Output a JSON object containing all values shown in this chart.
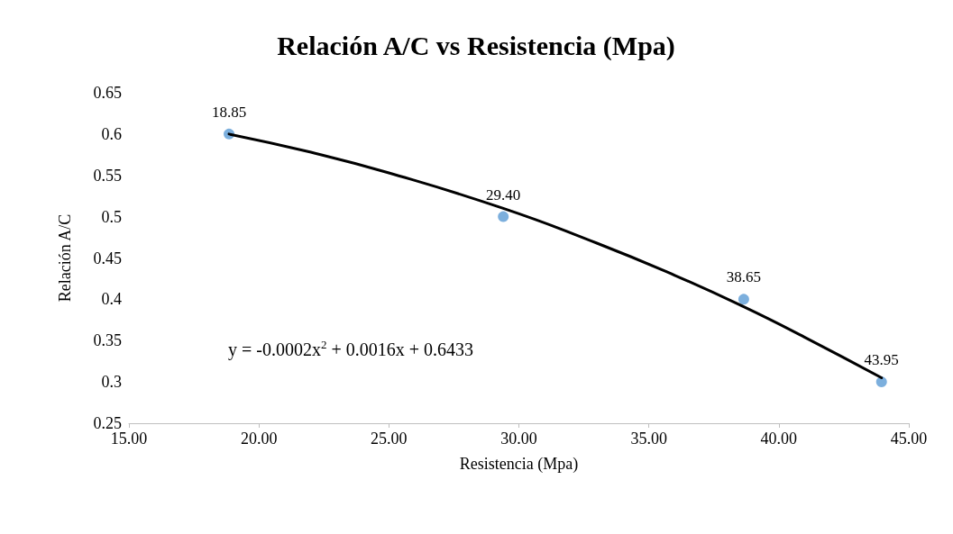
{
  "chart_data": {
    "type": "scatter",
    "title": "Relación A/C vs Resistencia (Mpa)",
    "xlabel": "Resistencia (Mpa)",
    "ylabel": "Relación A/C",
    "annotations": [
      "y = -0.0002x$^{2}$ + 0.0016x + 0.6433",
      {
        "text": "18.85",
        "x": 18.85,
        "y": 0.6
      },
      {
        "text": "29.40",
        "x": 29.4,
        "y": 0.5
      },
      {
        "text": "38.65",
        "x": 38.65,
        "y": 0.4
      },
      {
        "text": "43.95",
        "x": 43.95,
        "y": 0.3
      }
    ],
    "series": [
      {
        "type": "scatter",
        "color": "#5b9bd5",
        "x": [
          18.85,
          29.4,
          38.65,
          43.95
        ],
        "values": [
          0.6,
          0.5,
          0.4,
          0.3
        ],
        "marker": "circle"
      },
      {
        "type": "line",
        "color": "#000000",
        "x": [
          18.85,
          22,
          25,
          29.4,
          33,
          36,
          38.65,
          41,
          43.95
        ],
        "values": [
          0.6,
          0.578,
          0.553,
          0.51,
          0.468,
          0.429,
          0.391,
          0.354,
          0.305
        ],
        "marker": "none",
        "line_style": "solid"
      }
    ],
    "xlim": [
      15,
      45
    ],
    "xticks": [
      {
        "value": 15,
        "label": "15.00"
      },
      {
        "value": 20,
        "label": "20.00"
      },
      {
        "value": 25,
        "label": "25.00"
      },
      {
        "value": 30,
        "label": "30.00"
      },
      {
        "value": 35,
        "label": "35.00"
      },
      {
        "value": 40,
        "label": "40.00"
      },
      {
        "value": 45,
        "label": "45.00"
      }
    ],
    "ylim": [
      0.25,
      0.65
    ],
    "yticks": [
      0.25,
      0.3,
      0.35,
      0.4,
      0.45,
      0.5,
      0.55,
      0.6,
      0.65
    ]
  }
}
